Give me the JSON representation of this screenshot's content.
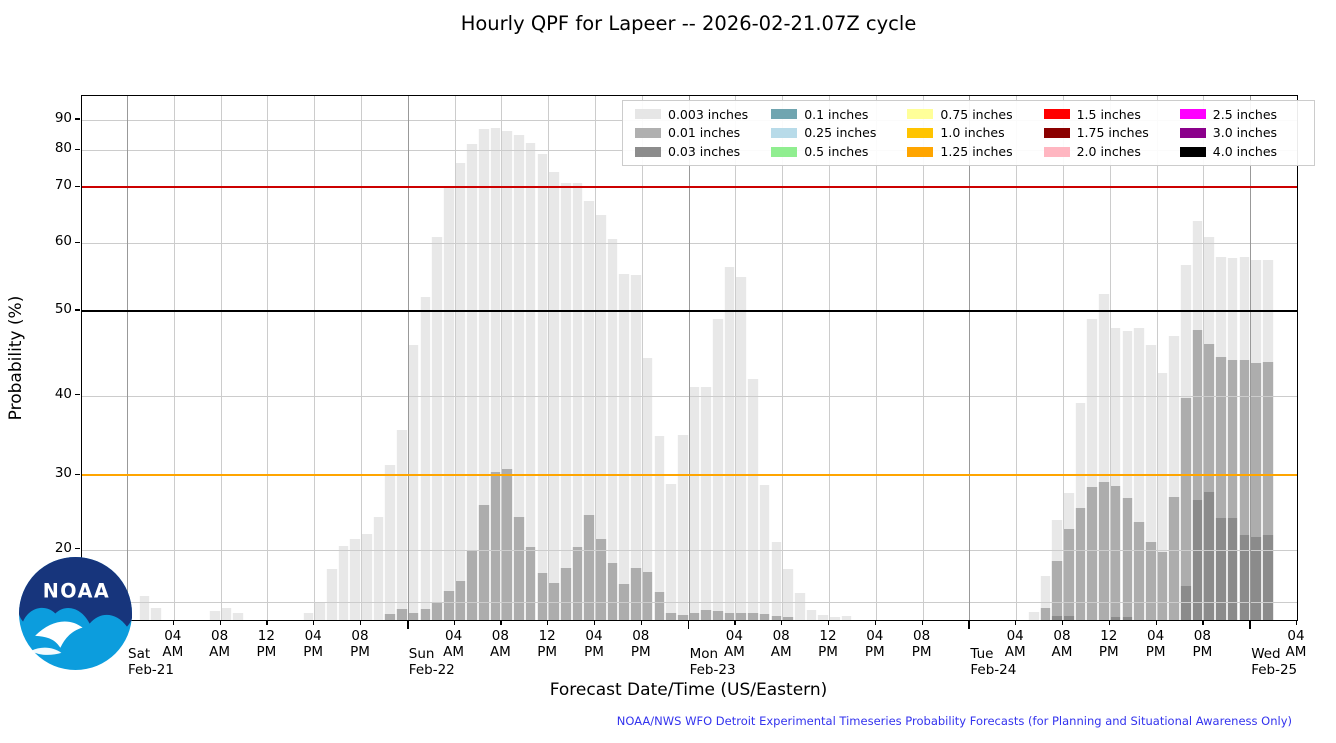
{
  "header": {
    "title": "Hourly QPF for Lapeer -- 2026-02-21.07Z cycle"
  },
  "footer": {
    "credit": "NOAA/NWS WFO Detroit Experimental Timeseries Probability Forecasts (for Planning and Situational Awareness Only)",
    "credit_color": "#3333ee"
  },
  "logo": {
    "name": "NOAA",
    "dark_blue": "#17357c",
    "light_blue": "#0c9ddd"
  },
  "chart_data": {
    "type": "bar",
    "title": "Hourly QPF for Lapeer -- 2026-02-21.07Z cycle",
    "xlabel": "Forecast Date/Time (US/Eastern)",
    "ylabel": "Probability (%)",
    "x_unit": "hours since Sat Feb-21 00:00 US/Eastern, one bar per hour",
    "bar_width_hours": 1,
    "x_range_hours": [
      -3.85,
      100
    ],
    "yticks": [
      20,
      30,
      40,
      50,
      60,
      70,
      80,
      90
    ],
    "gridline_values": [
      10,
      20,
      40,
      60,
      80,
      90
    ],
    "y_scale_note": "nonlinear probability axis, compressed toward low percentages",
    "y_scale_anchors": [
      [
        0,
        0
      ],
      [
        10,
        0.0353
      ],
      [
        20,
        0.1345
      ],
      [
        30,
        0.2767
      ],
      [
        40,
        0.4284
      ],
      [
        50,
        0.5897
      ],
      [
        60,
        0.7194
      ],
      [
        70,
        0.8262
      ],
      [
        80,
        0.8969
      ],
      [
        90,
        0.9542
      ],
      [
        95,
        0.9885
      ],
      [
        100,
        1
      ]
    ],
    "ref_lines": [
      {
        "value": 30,
        "color": "#ffa500"
      },
      {
        "value": 50,
        "color": "#000000"
      },
      {
        "value": 70,
        "color": "#cc0000"
      }
    ],
    "days": [
      {
        "label": "Sat",
        "date": "Feb-21",
        "t": 0
      },
      {
        "label": "Sun",
        "date": "Feb-22",
        "t": 24
      },
      {
        "label": "Mon",
        "date": "Feb-23",
        "t": 48
      },
      {
        "label": "Tue",
        "date": "Feb-24",
        "t": 72
      },
      {
        "label": "Wed",
        "date": "Feb-25",
        "t": 96
      }
    ],
    "time_label_pattern": [
      {
        "h": 4,
        "l1": "04",
        "l2": "AM"
      },
      {
        "h": 8,
        "l1": "08",
        "l2": "AM"
      },
      {
        "h": 12,
        "l1": "12",
        "l2": "PM"
      },
      {
        "h": 16,
        "l1": "04",
        "l2": "PM"
      },
      {
        "h": 20,
        "l1": "08",
        "l2": "PM"
      }
    ],
    "end_label": {
      "t": 100,
      "l1": "04",
      "l2": "AM"
    },
    "series": [
      {
        "name": "0.003 inches",
        "color": "#e8e8e8",
        "values": [
          0,
          11,
          6.5,
          0,
          0,
          0,
          0,
          5,
          6.5,
          4,
          0,
          0,
          0,
          0,
          0,
          4,
          10,
          16.3,
          20.5,
          21.4,
          22.1,
          24.4,
          31.3,
          35.6,
          46,
          52,
          61,
          70,
          76.5,
          82,
          87,
          87.5,
          86.5,
          85,
          82.4,
          79,
          74,
          71,
          71,
          67.5,
          65,
          60.7,
          55.5,
          55.3,
          44.4,
          34.9,
          28.8,
          35,
          41,
          41,
          49,
          56.5,
          55,
          42,
          28.6,
          21,
          16.2,
          11.6,
          5.4,
          2.5,
          1.5,
          2,
          0,
          0,
          0,
          0,
          0,
          0,
          0,
          0,
          0,
          0,
          0,
          0,
          0,
          0,
          0,
          4.5,
          15,
          24,
          27.6,
          39,
          49,
          52.5,
          48,
          47.6,
          48,
          46,
          42.7,
          47,
          56.7,
          64,
          61,
          58,
          57.8,
          58,
          57.5,
          57.5,
          0,
          0
        ]
      },
      {
        "name": "0.01 inches",
        "color": "#adadad",
        "values": [
          0,
          0,
          0,
          0,
          0,
          0,
          0,
          0,
          0,
          0,
          0,
          0,
          0,
          0,
          0,
          0,
          0,
          0,
          0,
          0,
          0,
          0,
          3,
          6,
          4,
          6,
          9,
          12,
          14,
          20,
          26,
          30.4,
          30.8,
          24.4,
          20.3,
          15.4,
          13.6,
          16.4,
          20.3,
          24.6,
          21.4,
          17.4,
          13.3,
          16.4,
          15.7,
          11.8,
          3.7,
          2.6,
          3.8,
          5.3,
          5,
          4,
          4,
          4,
          3,
          2,
          1.5,
          0,
          0,
          0,
          0,
          0,
          0,
          0,
          0,
          0,
          0,
          0,
          0,
          0,
          0,
          0,
          0,
          0,
          0,
          0,
          0,
          0,
          6.5,
          17.8,
          22.7,
          25.6,
          28.4,
          29,
          28.5,
          26.9,
          23.7,
          21,
          19.6,
          27.1,
          39.7,
          47.7,
          46.1,
          44.5,
          44.2,
          44.2,
          43.8,
          44,
          0,
          0
        ]
      },
      {
        "name": "0.03 inches",
        "color": "#8b8b8b",
        "values": [
          0,
          0,
          0,
          0,
          0,
          0,
          0,
          0,
          0,
          0,
          0,
          0,
          0,
          0,
          0,
          0,
          0,
          0,
          0,
          0,
          0,
          0,
          0,
          0,
          0,
          0,
          0,
          0,
          0,
          0,
          0,
          0,
          0,
          0,
          0,
          0,
          0,
          0,
          0,
          0,
          0,
          0,
          0,
          0,
          0,
          0,
          0,
          0,
          0,
          0,
          0,
          0,
          0,
          0,
          0,
          0,
          0,
          0,
          0,
          0,
          0,
          0,
          0,
          0,
          0,
          0,
          0,
          0,
          0,
          0,
          0,
          0,
          0,
          0,
          0,
          0,
          0,
          0,
          0,
          2,
          2,
          0,
          0,
          0,
          1.5,
          1.5,
          0,
          0,
          0,
          0,
          13,
          26.6,
          27.7,
          24.2,
          24.2,
          21.9,
          21.7,
          22,
          0,
          0
        ]
      }
    ],
    "legend": [
      {
        "label": "0.003 inches",
        "color": "#e6e6e6"
      },
      {
        "label": "0.01 inches",
        "color": "#b0b0b0"
      },
      {
        "label": "0.03 inches",
        "color": "#8c8c8c"
      },
      {
        "label": "0.1 inches",
        "color": "#70a5b0"
      },
      {
        "label": "0.25 inches",
        "color": "#b8dbe9"
      },
      {
        "label": "0.5 inches",
        "color": "#90ee90"
      },
      {
        "label": "0.75 inches",
        "color": "#ffff99"
      },
      {
        "label": "1.0 inches",
        "color": "#ffc400"
      },
      {
        "label": "1.25 inches",
        "color": "#ffa500"
      },
      {
        "label": "1.5 inches",
        "color": "#ff0000"
      },
      {
        "label": "1.75 inches",
        "color": "#8b0000"
      },
      {
        "label": "2.0 inches",
        "color": "#ffb6c1"
      },
      {
        "label": "2.5 inches",
        "color": "#ff00ff"
      },
      {
        "label": "3.0 inches",
        "color": "#8b008b"
      },
      {
        "label": "4.0 inches",
        "color": "#000000"
      }
    ]
  }
}
